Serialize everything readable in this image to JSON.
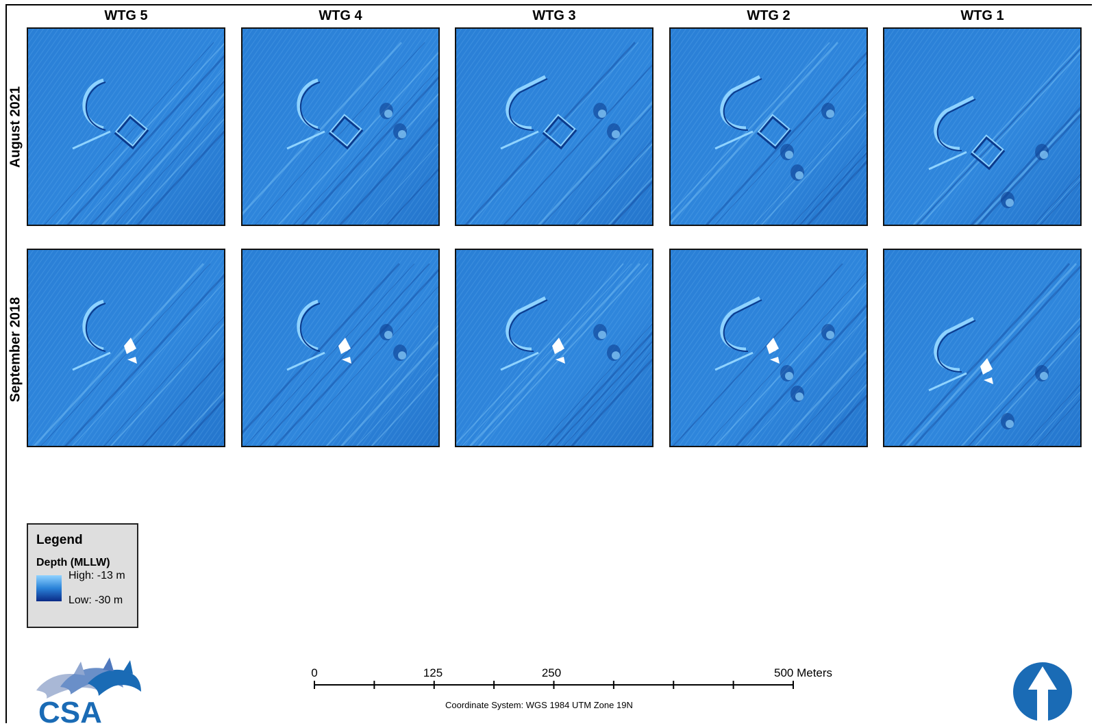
{
  "columns": [
    "WTG 5",
    "WTG 4",
    "WTG 3",
    "WTG 2",
    "WTG 1"
  ],
  "rows": [
    "August 2021",
    "September 2018"
  ],
  "legend": {
    "title": "Legend",
    "subtitle": "Depth (MLLW)",
    "high": "High: -13 m",
    "low": "Low: -30 m",
    "colors": {
      "high": "#8fd3ff",
      "mid": "#2a82d8",
      "low": "#0a2a86"
    }
  },
  "scale_bar": {
    "labels": [
      "0",
      "125",
      "250",
      "500 Meters"
    ],
    "coordinate_system": "Coordinate System: WGS 1984 UTM Zone 19N"
  },
  "logo": {
    "text": "CSA",
    "color": "#1a6bb5"
  },
  "north_arrow": {
    "icon": "north-arrow-icon",
    "color": "#1a6bb5"
  },
  "map_colors": {
    "base": "#2a7fd6",
    "light": "#8fd3ff",
    "dark": "#0b3a8c"
  }
}
